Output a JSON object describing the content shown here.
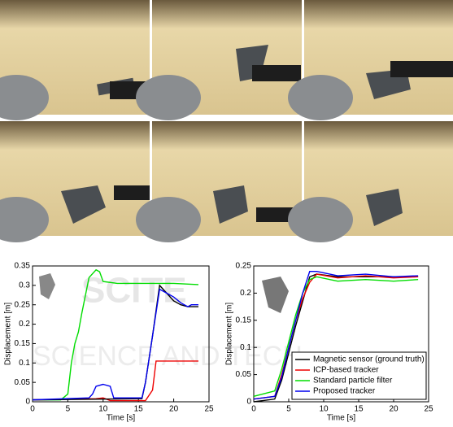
{
  "watermark": {
    "big": "SCITE",
    "small": "SCIENCE AND TECH"
  },
  "chart_data": [
    {
      "type": "line",
      "xlabel": "Time [s]",
      "ylabel": "Displacement [m]",
      "xlim": [
        0,
        25
      ],
      "ylim": [
        0,
        0.35
      ],
      "xticks": [
        0,
        5,
        10,
        15,
        20,
        25
      ],
      "yticks": [
        0,
        0.05,
        0.1,
        0.15,
        0.2,
        0.25,
        0.3,
        0.35
      ],
      "series": [
        {
          "color": "#00dd00",
          "x": [
            0,
            4,
            5,
            5.5,
            6,
            6.5,
            7,
            8,
            9,
            9.5,
            10,
            12,
            16,
            20,
            23.5
          ],
          "values": [
            0.005,
            0.005,
            0.02,
            0.1,
            0.15,
            0.18,
            0.23,
            0.32,
            0.34,
            0.335,
            0.31,
            0.305,
            0.305,
            0.305,
            0.302
          ]
        },
        {
          "color": "#ee0000",
          "x": [
            0,
            9,
            10,
            11,
            16,
            17,
            17.5,
            20,
            23.5
          ],
          "values": [
            0.005,
            0.008,
            0.01,
            0.003,
            0.003,
            0.03,
            0.105,
            0.105,
            0.105
          ]
        },
        {
          "color": "#000000",
          "x": [
            0,
            15.5,
            16,
            17,
            18,
            19,
            20,
            21,
            22,
            23.5
          ],
          "values": [
            0.005,
            0.008,
            0.05,
            0.17,
            0.3,
            0.28,
            0.26,
            0.25,
            0.245,
            0.245
          ]
        },
        {
          "color": "#0000ee",
          "x": [
            0,
            8,
            8.5,
            9,
            10,
            11,
            11.5,
            14,
            15.5,
            16,
            17,
            18,
            19,
            20,
            21,
            22,
            22.5,
            23.5
          ],
          "values": [
            0.005,
            0.01,
            0.02,
            0.04,
            0.045,
            0.04,
            0.01,
            0.01,
            0.01,
            0.05,
            0.17,
            0.29,
            0.28,
            0.27,
            0.255,
            0.245,
            0.25,
            0.25
          ]
        }
      ]
    },
    {
      "type": "line",
      "xlabel": "Time [s]",
      "ylabel": "Displacement [m]",
      "xlim": [
        0,
        25
      ],
      "ylim": [
        0,
        0.25
      ],
      "xticks": [
        0,
        5,
        10,
        15,
        20,
        25
      ],
      "yticks": [
        0,
        0.05,
        0.1,
        0.15,
        0.2,
        0.25
      ],
      "legend": "lower right",
      "series": [
        {
          "name": "Magnetic sensor (ground truth)",
          "color": "#000000",
          "x": [
            0,
            3,
            4,
            5,
            6,
            7,
            8,
            9,
            12,
            23.5
          ],
          "values": [
            0,
            0.005,
            0.04,
            0.09,
            0.14,
            0.185,
            0.23,
            0.235,
            0.23,
            0.23
          ]
        },
        {
          "name": "ICP-based tracker",
          "color": "#ee0000",
          "x": [
            0,
            3,
            4,
            5,
            6,
            7,
            8,
            9,
            12,
            16,
            20,
            23.5
          ],
          "values": [
            0.005,
            0.01,
            0.05,
            0.1,
            0.15,
            0.19,
            0.22,
            0.235,
            0.228,
            0.232,
            0.228,
            0.23
          ]
        },
        {
          "name": "Standard particle filter",
          "color": "#00dd00",
          "x": [
            0,
            3,
            4,
            5,
            6,
            7,
            8,
            9,
            12,
            16,
            20,
            23.5
          ],
          "values": [
            0.01,
            0.02,
            0.06,
            0.11,
            0.16,
            0.2,
            0.225,
            0.23,
            0.222,
            0.225,
            0.222,
            0.225
          ]
        },
        {
          "name": "Proposed tracker",
          "color": "#0000ee",
          "x": [
            0,
            3,
            4,
            5,
            6,
            7,
            8,
            9,
            12,
            16,
            20,
            23.5
          ],
          "values": [
            0.005,
            0.01,
            0.045,
            0.1,
            0.15,
            0.2,
            0.24,
            0.24,
            0.232,
            0.235,
            0.23,
            0.232
          ]
        }
      ]
    }
  ]
}
